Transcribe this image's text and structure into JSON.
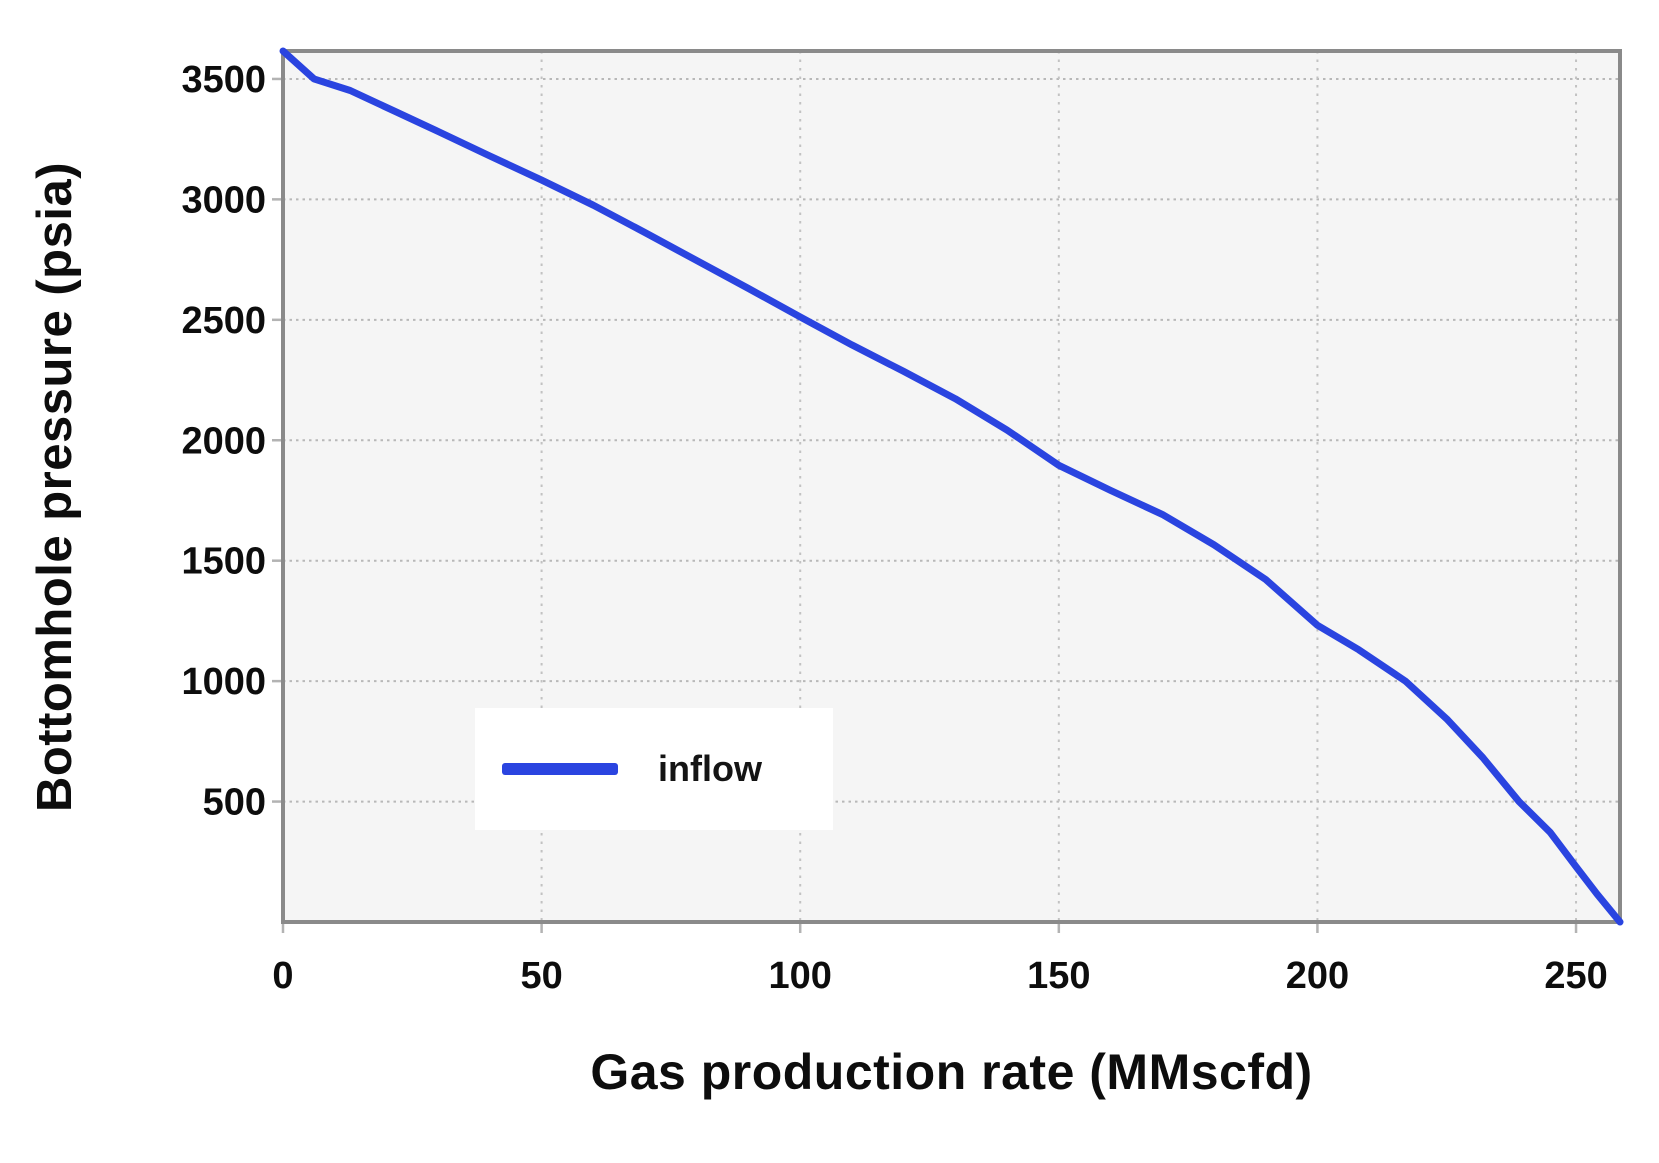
{
  "chart_data": {
    "type": "line",
    "title": "",
    "xlabel": "Gas production rate (MMscfd)",
    "ylabel": "Bottomhole pressure (psia)",
    "xlim": [
      0,
      258.5
    ],
    "ylim": [
      0,
      3616
    ],
    "x_ticks": [
      0,
      50,
      100,
      150,
      200,
      250
    ],
    "y_ticks": [
      500,
      1000,
      1500,
      2000,
      2500,
      3000,
      3500
    ],
    "grid": true,
    "legend": {
      "position": "inside-lower-left",
      "entries": [
        {
          "label": "inflow",
          "color": "#2a44e0"
        }
      ]
    },
    "series": [
      {
        "name": "inflow",
        "color": "#2a44e0",
        "points": [
          [
            0,
            3616
          ],
          [
            6,
            3500
          ],
          [
            13,
            3452
          ],
          [
            22,
            3362
          ],
          [
            30,
            3282
          ],
          [
            40,
            3180
          ],
          [
            50,
            3080
          ],
          [
            60,
            2976
          ],
          [
            70,
            2862
          ],
          [
            80,
            2746
          ],
          [
            90,
            2630
          ],
          [
            100,
            2512
          ],
          [
            110,
            2396
          ],
          [
            120,
            2286
          ],
          [
            130,
            2172
          ],
          [
            140,
            2042
          ],
          [
            150,
            1896
          ],
          [
            160,
            1792
          ],
          [
            170,
            1692
          ],
          [
            180,
            1566
          ],
          [
            190,
            1422
          ],
          [
            200,
            1232
          ],
          [
            208,
            1130
          ],
          [
            217,
            1000
          ],
          [
            225,
            843
          ],
          [
            232,
            682
          ],
          [
            239,
            500
          ],
          [
            245,
            372
          ],
          [
            250,
            230
          ],
          [
            254,
            118
          ],
          [
            258.5,
            0
          ]
        ]
      }
    ]
  },
  "colors": {
    "accent_blue": "#2a44e0",
    "plot_background": "#f5f5f5",
    "plot_border": "#8a8a8a",
    "grid_horizontal": "#b8b8b8",
    "grid_vertical": "#c2c2c2",
    "tick_mark": "#b3b3b3",
    "text": "#0d0d0d"
  }
}
